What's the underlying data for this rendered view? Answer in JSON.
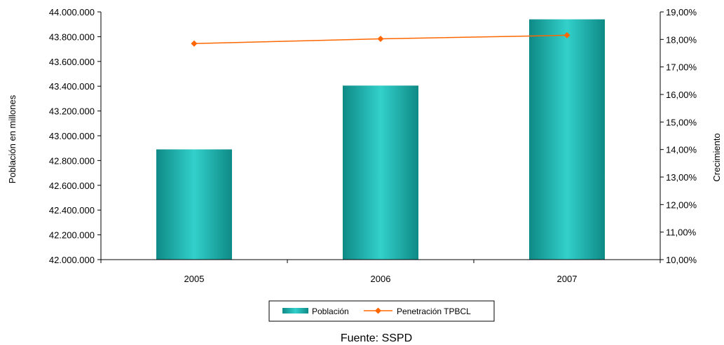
{
  "chart_data": {
    "type": "bar",
    "categories": [
      "2005",
      "2006",
      "2007"
    ],
    "series": [
      {
        "name": "Población",
        "type": "bar",
        "axis": "left",
        "values": [
          42890000,
          43405000,
          43940000
        ],
        "color": "#2ab9b3"
      },
      {
        "name": "Penetración TPBCL",
        "type": "line",
        "axis": "right",
        "values": [
          0.1785,
          0.1802,
          0.1815
        ],
        "color": "#ff6600"
      }
    ],
    "ylabel": "Población en millones",
    "y2label": "Crecimiento",
    "ylim": [
      42000000,
      44000000
    ],
    "y2lim": [
      0.1,
      0.19
    ],
    "yticks": [
      "42.000.000",
      "42.200.000",
      "42.400.000",
      "42.600.000",
      "42.800.000",
      "43.000.000",
      "43.200.000",
      "43.400.000",
      "43.600.000",
      "43.800.000",
      "44.000.000"
    ],
    "y2ticks": [
      "10,00%",
      "11,00%",
      "12,00%",
      "13,00%",
      "14,00%",
      "15,00%",
      "16,00%",
      "17,00%",
      "18,00%",
      "19,00%"
    ],
    "legend_position": "bottom",
    "grid": false,
    "source": "Fuente: SSPD"
  }
}
